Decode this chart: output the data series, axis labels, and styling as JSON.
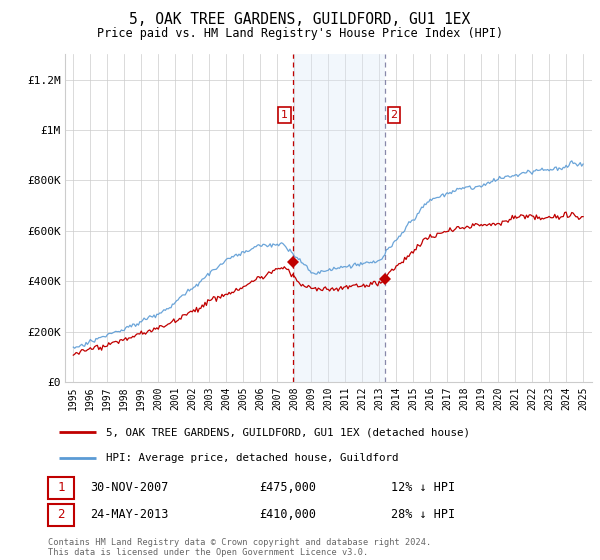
{
  "title": "5, OAK TREE GARDENS, GUILDFORD, GU1 1EX",
  "subtitle": "Price paid vs. HM Land Registry's House Price Index (HPI)",
  "legend_line1": "5, OAK TREE GARDENS, GUILDFORD, GU1 1EX (detached house)",
  "legend_line2": "HPI: Average price, detached house, Guildford",
  "annotation1_date": "30-NOV-2007",
  "annotation1_price": "£475,000",
  "annotation1_pct": "12% ↓ HPI",
  "annotation2_date": "24-MAY-2013",
  "annotation2_price": "£410,000",
  "annotation2_pct": "28% ↓ HPI",
  "copyright": "Contains HM Land Registry data © Crown copyright and database right 2024.\nThis data is licensed under the Open Government Licence v3.0.",
  "hpi_color": "#5b9bd5",
  "price_color": "#c00000",
  "shade_color": "#dbe9f7",
  "vline1_color": "#c00000",
  "vline2_color": "#8888aa",
  "marker1_x": 2007.917,
  "marker1_y": 475000,
  "marker2_x": 2013.37,
  "marker2_y": 410000,
  "shade_x1": 2007.917,
  "shade_x2": 2013.37,
  "ylim": [
    0,
    1300000
  ],
  "xlim_start": 1994.5,
  "xlim_end": 2025.5,
  "yticks": [
    0,
    200000,
    400000,
    600000,
    800000,
    1000000,
    1200000
  ],
  "ytick_labels": [
    "£0",
    "£200K",
    "£400K",
    "£600K",
    "£800K",
    "£1M",
    "£1.2M"
  ],
  "xticks": [
    1995,
    1996,
    1997,
    1998,
    1999,
    2000,
    2001,
    2002,
    2003,
    2004,
    2005,
    2006,
    2007,
    2008,
    2009,
    2010,
    2011,
    2012,
    2013,
    2014,
    2015,
    2016,
    2017,
    2018,
    2019,
    2020,
    2021,
    2022,
    2023,
    2024,
    2025
  ],
  "fig_width": 6.0,
  "fig_height": 5.6,
  "dpi": 100
}
